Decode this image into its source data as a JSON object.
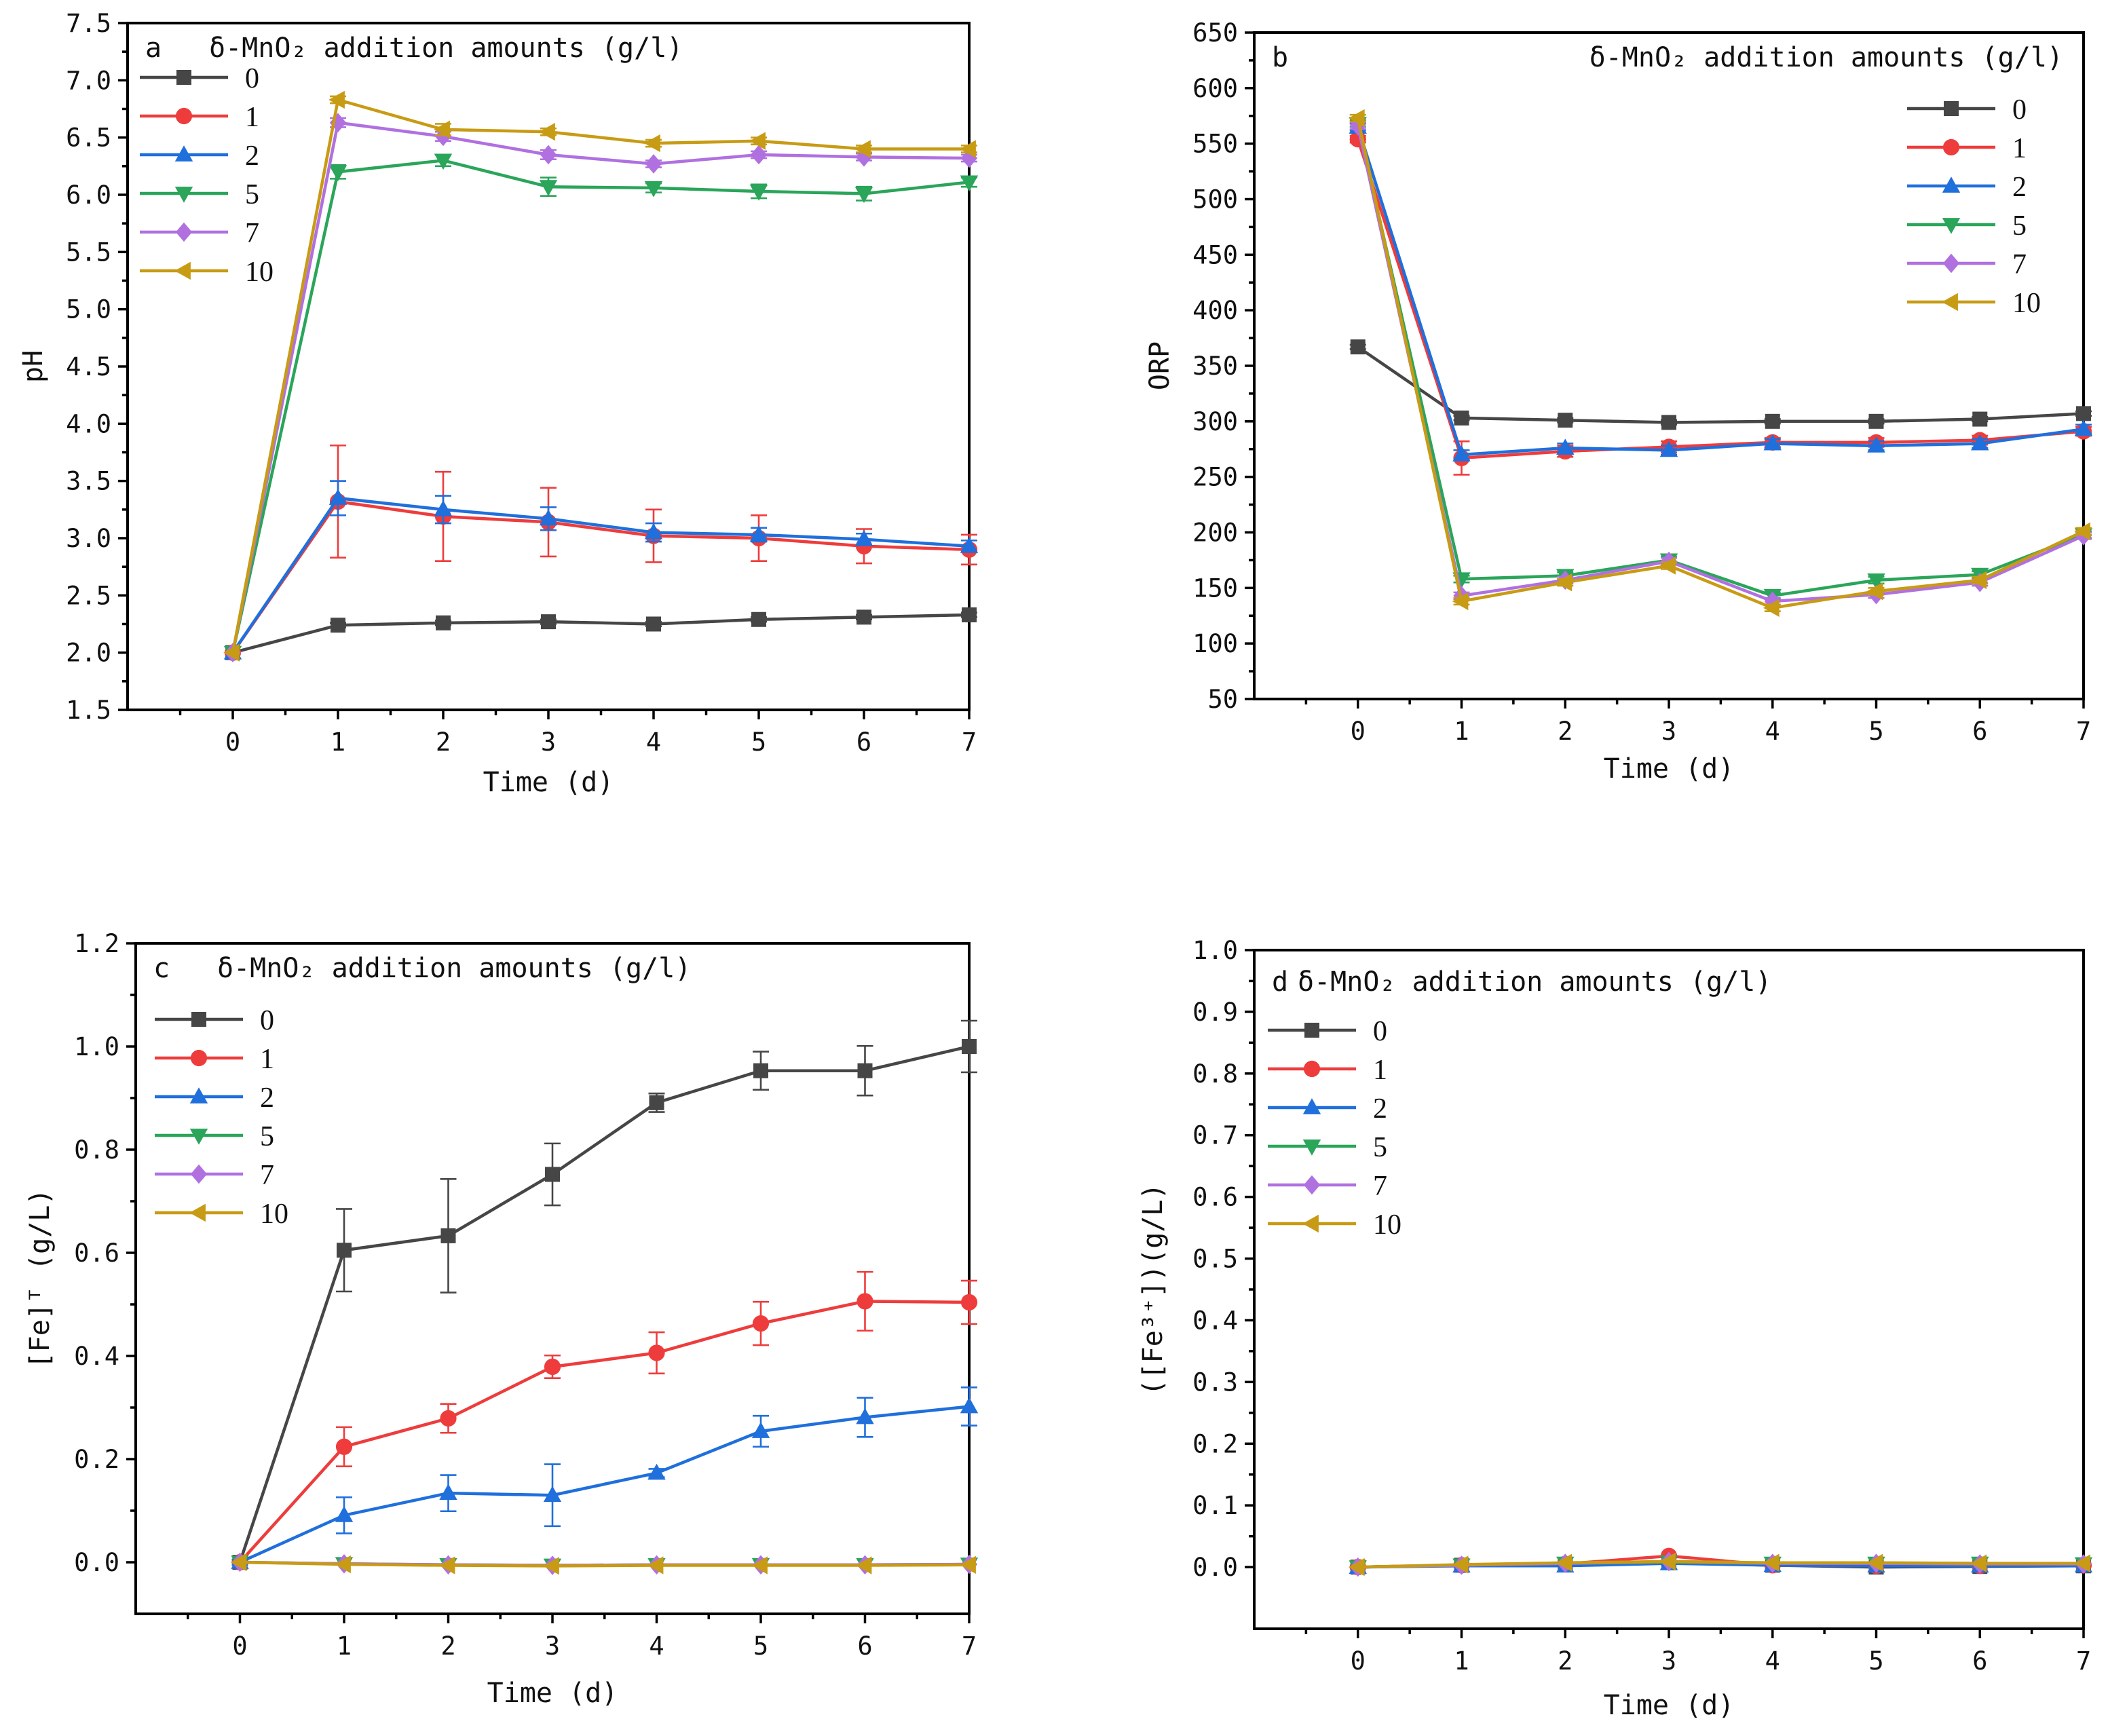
{
  "figure": {
    "background": "#ffffff",
    "series_colors": {
      "0": "#464646",
      "1": "#ee3c3c",
      "2": "#1f6fdc",
      "5": "#2aa55a",
      "7": "#b070e0",
      "10": "#c89b14"
    },
    "marker_shapes": {
      "0": "square",
      "1": "circle",
      "2": "triangle-up",
      "5": "triangle-down",
      "7": "diamond",
      "10": "triangle-left"
    }
  },
  "chart_data": [
    {
      "panel": "a",
      "type": "line",
      "title": "δ-MnO₂ addition amounts (g/l)",
      "xlabel": "Time (d)",
      "ylabel": "pH",
      "xlim": [
        -1,
        7
      ],
      "ylim": [
        1.5,
        7.5
      ],
      "xticks": [
        "0",
        "1",
        "2",
        "3",
        "4",
        "5",
        "6",
        "7"
      ],
      "yticks": [
        "1.5",
        "2.0",
        "2.5",
        "3.0",
        "3.5",
        "4.0",
        "4.5",
        "5.0",
        "5.5",
        "6.0",
        "6.5",
        "7.0",
        "7.5"
      ],
      "legend_position": "top-left",
      "x": [
        0,
        1,
        2,
        3,
        4,
        5,
        6,
        7
      ],
      "series": [
        {
          "name": "0",
          "values": [
            2.0,
            2.24,
            2.26,
            2.27,
            2.25,
            2.29,
            2.31,
            2.33
          ],
          "errors": [
            0.01,
            0.02,
            0.02,
            0.02,
            0.02,
            0.02,
            0.02,
            0.02
          ]
        },
        {
          "name": "1",
          "values": [
            2.0,
            3.32,
            3.19,
            3.14,
            3.02,
            3.0,
            2.93,
            2.9
          ],
          "errors": [
            0.01,
            0.49,
            0.39,
            0.3,
            0.23,
            0.2,
            0.15,
            0.13
          ]
        },
        {
          "name": "2",
          "values": [
            2.0,
            3.35,
            3.25,
            3.17,
            3.05,
            3.03,
            2.99,
            2.93
          ],
          "errors": [
            0.01,
            0.15,
            0.12,
            0.1,
            0.08,
            0.06,
            0.05,
            0.05
          ]
        },
        {
          "name": "5",
          "values": [
            2.0,
            6.2,
            6.3,
            6.07,
            6.06,
            6.03,
            6.01,
            6.11
          ],
          "errors": [
            0.01,
            0.06,
            0.05,
            0.08,
            0.04,
            0.06,
            0.06,
            0.04
          ]
        },
        {
          "name": "7",
          "values": [
            2.0,
            6.63,
            6.51,
            6.35,
            6.27,
            6.35,
            6.33,
            6.32
          ],
          "errors": [
            0.01,
            0.04,
            0.04,
            0.04,
            0.03,
            0.03,
            0.03,
            0.03
          ]
        },
        {
          "name": "10",
          "values": [
            2.0,
            6.83,
            6.57,
            6.55,
            6.45,
            6.47,
            6.4,
            6.4
          ],
          "errors": [
            0.01,
            0.03,
            0.05,
            0.03,
            0.03,
            0.03,
            0.03,
            0.03
          ]
        }
      ]
    },
    {
      "panel": "b",
      "type": "line",
      "title": "δ-MnO₂ addition amounts (g/l)",
      "xlabel": "Time (d)",
      "ylabel": "ORP",
      "xlim": [
        -1,
        7
      ],
      "ylim": [
        50,
        650
      ],
      "xticks": [
        "0",
        "1",
        "2",
        "3",
        "4",
        "5",
        "6",
        "7"
      ],
      "yticks": [
        "50",
        "100",
        "150",
        "200",
        "250",
        "300",
        "350",
        "400",
        "450",
        "500",
        "550",
        "600",
        "650"
      ],
      "legend_position": "top-right",
      "x": [
        0,
        1,
        2,
        3,
        4,
        5,
        6,
        7
      ],
      "series": [
        {
          "name": "0",
          "values": [
            367,
            303,
            301,
            299,
            300,
            300,
            302,
            307
          ],
          "errors": [
            2,
            2,
            2,
            2,
            2,
            2,
            2,
            2
          ]
        },
        {
          "name": "1",
          "values": [
            554,
            267,
            273,
            277,
            281,
            281,
            283,
            291
          ],
          "errors": [
            3,
            15,
            5,
            5,
            4,
            4,
            4,
            4
          ]
        },
        {
          "name": "2",
          "values": [
            565,
            270,
            276,
            274,
            280,
            278,
            280,
            293
          ],
          "errors": [
            3,
            4,
            4,
            4,
            4,
            4,
            4,
            4
          ]
        },
        {
          "name": "5",
          "values": [
            568,
            158,
            161,
            175,
            143,
            157,
            162,
            198
          ],
          "errors": [
            3,
            3,
            3,
            3,
            3,
            3,
            3,
            3
          ]
        },
        {
          "name": "7",
          "values": [
            566,
            143,
            157,
            174,
            138,
            144,
            155,
            197
          ],
          "errors": [
            3,
            3,
            3,
            3,
            3,
            3,
            3,
            3
          ]
        },
        {
          "name": "10",
          "values": [
            573,
            138,
            155,
            170,
            132,
            147,
            157,
            201
          ],
          "errors": [
            3,
            3,
            3,
            3,
            3,
            3,
            3,
            3
          ]
        }
      ]
    },
    {
      "panel": "c",
      "type": "line",
      "title": "δ-MnO₂ addition amounts (g/l)",
      "xlabel": "Time (d)",
      "ylabel": "[Fe]ᵀ (g/L)",
      "xlim": [
        -1,
        7
      ],
      "ylim": [
        -0.1,
        1.2
      ],
      "xticks": [
        "0",
        "1",
        "2",
        "3",
        "4",
        "5",
        "6",
        "7"
      ],
      "yticks": [
        "0.0",
        "0.2",
        "0.4",
        "0.6",
        "0.8",
        "1.0",
        "1.2"
      ],
      "legend_position": "top-left",
      "x": [
        0,
        1,
        2,
        3,
        4,
        5,
        6,
        7
      ],
      "series": [
        {
          "name": "0",
          "values": [
            0.0,
            0.605,
            0.633,
            0.752,
            0.891,
            0.953,
            0.953,
            1.0
          ],
          "errors": [
            0.005,
            0.08,
            0.11,
            0.06,
            0.018,
            0.037,
            0.048,
            0.05
          ]
        },
        {
          "name": "1",
          "values": [
            0.0,
            0.224,
            0.279,
            0.379,
            0.406,
            0.463,
            0.506,
            0.504
          ],
          "errors": [
            0.005,
            0.038,
            0.028,
            0.022,
            0.04,
            0.042,
            0.057,
            0.042
          ]
        },
        {
          "name": "2",
          "values": [
            0.0,
            0.091,
            0.134,
            0.13,
            0.173,
            0.254,
            0.281,
            0.302
          ],
          "errors": [
            0.005,
            0.035,
            0.035,
            0.06,
            0.008,
            0.03,
            0.038,
            0.037
          ]
        },
        {
          "name": "5",
          "values": [
            0.0,
            -0.003,
            -0.005,
            -0.006,
            -0.005,
            -0.005,
            -0.005,
            -0.004
          ],
          "errors": [
            0,
            0,
            0,
            0,
            0,
            0,
            0,
            0
          ]
        },
        {
          "name": "7",
          "values": [
            0.0,
            -0.003,
            -0.005,
            -0.006,
            -0.005,
            -0.005,
            -0.005,
            -0.004
          ],
          "errors": [
            0,
            0,
            0,
            0,
            0,
            0,
            0,
            0
          ]
        },
        {
          "name": "10",
          "values": [
            0.0,
            -0.004,
            -0.006,
            -0.007,
            -0.006,
            -0.006,
            -0.006,
            -0.005
          ],
          "errors": [
            0,
            0,
            0,
            0,
            0,
            0,
            0,
            0
          ]
        }
      ]
    },
    {
      "panel": "d",
      "type": "line",
      "title": "δ-MnO₂ addition amounts (g/l)",
      "xlabel": "Time (d)",
      "ylabel": "([Fe³⁺])(g/L)",
      "xlim": [
        -1,
        7
      ],
      "ylim": [
        -0.1,
        1.0
      ],
      "xticks": [
        "0",
        "1",
        "2",
        "3",
        "4",
        "5",
        "6",
        "7"
      ],
      "yticks": [
        "0.0",
        "0.1",
        "0.2",
        "0.3",
        "0.4",
        "0.5",
        "0.6",
        "0.7",
        "0.8",
        "0.9",
        "1.0"
      ],
      "legend_position": "top-left",
      "x": [
        0,
        1,
        2,
        3,
        4,
        5,
        6,
        7
      ],
      "series": [
        {
          "name": "0",
          "values": [
            0.0,
            0.003,
            0.004,
            0.007,
            0.003,
            0.0,
            0.001,
            0.002
          ],
          "errors": [
            0,
            0,
            0,
            0,
            0,
            0,
            0,
            0
          ]
        },
        {
          "name": "1",
          "values": [
            0.0,
            0.003,
            0.005,
            0.018,
            0.003,
            0.002,
            0.002,
            0.003
          ],
          "errors": [
            0,
            0,
            0,
            0,
            0,
            0,
            0,
            0
          ]
        },
        {
          "name": "2",
          "values": [
            0.0,
            0.002,
            0.002,
            0.006,
            0.003,
            0.002,
            0.002,
            0.002
          ],
          "errors": [
            0,
            0,
            0,
            0,
            0,
            0,
            0,
            0
          ]
        },
        {
          "name": "5",
          "values": [
            0.0,
            0.003,
            0.006,
            0.008,
            0.006,
            0.006,
            0.006,
            0.005
          ],
          "errors": [
            0,
            0,
            0,
            0,
            0,
            0,
            0,
            0
          ]
        },
        {
          "name": "7",
          "values": [
            0.0,
            0.003,
            0.006,
            0.009,
            0.006,
            0.006,
            0.005,
            0.005
          ],
          "errors": [
            0,
            0,
            0,
            0,
            0,
            0,
            0,
            0
          ]
        },
        {
          "name": "10",
          "values": [
            0.0,
            0.004,
            0.007,
            0.009,
            0.007,
            0.007,
            0.006,
            0.006
          ],
          "errors": [
            0,
            0,
            0,
            0,
            0,
            0,
            0,
            0
          ]
        }
      ]
    }
  ]
}
